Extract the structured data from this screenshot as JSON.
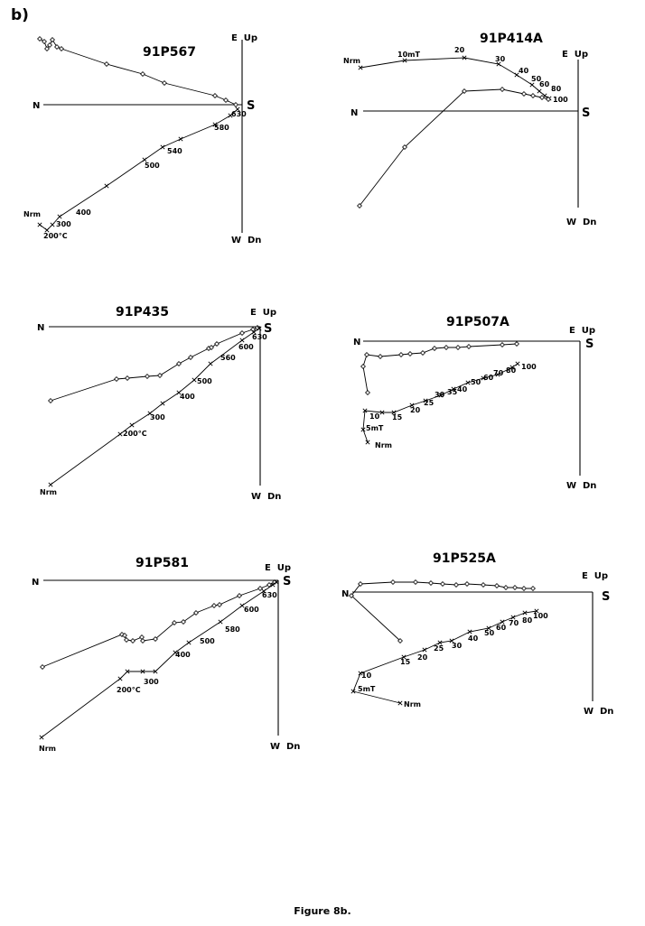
{
  "panel_label": "b)",
  "caption": "Figure 8b.",
  "chart_data": [
    {
      "type": "scatter",
      "title": "91P567",
      "axis_labels": {
        "north": "N",
        "south": "S",
        "east_up": "E  Up",
        "west_down": "W  Dn"
      },
      "series": [
        {
          "marker": "diamond",
          "points": [
            [
              44,
              43
            ],
            [
              49,
              46
            ],
            [
              52,
              54
            ],
            [
              55,
              50
            ],
            [
              58,
              44
            ],
            [
              63,
              52
            ],
            [
              68,
              54
            ],
            [
              118,
              71
            ],
            [
              158,
              82
            ],
            [
              182,
              92
            ],
            [
              238,
              106
            ],
            [
              250,
              111
            ],
            [
              261,
              116
            ]
          ]
        },
        {
          "marker": "cross",
          "points": [
            [
              44,
              249
            ],
            [
              52,
              255
            ],
            [
              58,
              249
            ],
            [
              66,
              240
            ],
            [
              118,
              206
            ],
            [
              160,
              177
            ],
            [
              180,
              163
            ],
            [
              200,
              154
            ],
            [
              238,
              138
            ],
            [
              255,
              128
            ],
            [
              263,
              121
            ]
          ]
        }
      ],
      "step_labels": [
        {
          "text": "Nrm",
          "pos": [
            26,
            240
          ]
        },
        {
          "text": "300",
          "pos": [
            62,
            251
          ]
        },
        {
          "text": "400",
          "pos": [
            84,
            238
          ]
        },
        {
          "text": "200°C",
          "pos": [
            48,
            264
          ]
        },
        {
          "text": "500",
          "pos": [
            160,
            186
          ]
        },
        {
          "text": "540",
          "pos": [
            185,
            170
          ]
        },
        {
          "text": "580",
          "pos": [
            237,
            144
          ]
        },
        {
          "text": "630",
          "pos": [
            256,
            129
          ]
        }
      ]
    },
    {
      "type": "scatter",
      "title": "91P414A",
      "axis_labels": {
        "north": "N",
        "south": "S",
        "east_up": "E  Up",
        "west_down": "W  Dn"
      },
      "series": [
        {
          "marker": "cross",
          "points": [
            [
              399,
              75
            ],
            [
              448,
              67
            ],
            [
              514,
              64
            ],
            [
              552,
              71
            ],
            [
              572,
              83
            ],
            [
              589,
              94
            ],
            [
              597,
              101
            ],
            [
              603,
              106
            ],
            [
              608,
              109
            ]
          ]
        },
        {
          "marker": "diamond",
          "points": [
            [
              398,
              228
            ],
            [
              448,
              163
            ],
            [
              514,
              101
            ],
            [
              556,
              99
            ],
            [
              580,
              104
            ],
            [
              590,
              106
            ],
            [
              600,
              108
            ],
            [
              607,
              110
            ]
          ]
        }
      ],
      "step_labels": [
        {
          "text": "Nrm",
          "pos": [
            380,
            70
          ]
        },
        {
          "text": "10mT",
          "pos": [
            440,
            63
          ]
        },
        {
          "text": "20",
          "pos": [
            503,
            58
          ]
        },
        {
          "text": "30",
          "pos": [
            548,
            68
          ]
        },
        {
          "text": "40",
          "pos": [
            574,
            81
          ]
        },
        {
          "text": "50",
          "pos": [
            588,
            90
          ]
        },
        {
          "text": "60",
          "pos": [
            597,
            96
          ]
        },
        {
          "text": "80",
          "pos": [
            610,
            101
          ]
        },
        {
          "text": "100",
          "pos": [
            612,
            113
          ]
        }
      ]
    },
    {
      "type": "scatter",
      "title": "91P435",
      "axis_labels": {
        "north": "N",
        "south": "S",
        "east_up": "E  Up",
        "west_down": "W  Dn"
      },
      "series": [
        {
          "marker": "diamond",
          "points": [
            [
              56,
              444
            ],
            [
              129,
              420
            ],
            [
              141,
              419
            ],
            [
              163,
              417
            ],
            [
              177,
              416
            ],
            [
              198,
              403
            ],
            [
              211,
              396
            ],
            [
              231,
              386
            ],
            [
              234,
              385
            ],
            [
              240,
              381
            ],
            [
              268,
              369
            ],
            [
              280,
              365
            ],
            [
              285,
              363
            ]
          ]
        },
        {
          "marker": "cross",
          "points": [
            [
              56,
              537
            ],
            [
              133,
              481
            ],
            [
              146,
              471
            ],
            [
              166,
              458
            ],
            [
              180,
              447
            ],
            [
              198,
              435
            ],
            [
              215,
              421
            ],
            [
              233,
              403
            ],
            [
              268,
              377
            ],
            [
              281,
              368
            ],
            [
              287,
              364
            ]
          ]
        }
      ],
      "step_labels": [
        {
          "text": "Nrm",
          "pos": [
            44,
            548
          ]
        },
        {
          "text": "200°C",
          "pos": [
            136,
            483
          ]
        },
        {
          "text": "300",
          "pos": [
            166,
            465
          ]
        },
        {
          "text": "400",
          "pos": [
            199,
            442
          ]
        },
        {
          "text": "500",
          "pos": [
            218,
            425
          ]
        },
        {
          "text": "560",
          "pos": [
            244,
            399
          ]
        },
        {
          "text": "600",
          "pos": [
            264,
            387
          ]
        },
        {
          "text": "630",
          "pos": [
            279,
            376
          ]
        }
      ]
    },
    {
      "type": "scatter",
      "title": "91P507A",
      "axis_labels": {
        "north": "N",
        "south": "S",
        "east_up": "E  Up",
        "west_down": "W  Dn"
      },
      "series": [
        {
          "marker": "diamond",
          "points": [
            [
              407,
              435
            ],
            [
              402,
              406
            ],
            [
              406,
              393
            ],
            [
              421,
              395
            ],
            [
              444,
              393
            ],
            [
              454,
              392
            ],
            [
              468,
              391
            ],
            [
              481,
              386
            ],
            [
              494,
              385
            ],
            [
              507,
              385
            ],
            [
              519,
              384
            ],
            [
              556,
              382
            ],
            [
              572,
              381
            ]
          ]
        },
        {
          "marker": "cross",
          "points": [
            [
              407,
              490
            ],
            [
              402,
              476
            ],
            [
              404,
              455
            ],
            [
              423,
              457
            ],
            [
              436,
              457
            ],
            [
              456,
              449
            ],
            [
              471,
              444
            ],
            [
              488,
              438
            ],
            [
              502,
              431
            ],
            [
              518,
              424
            ],
            [
              535,
              419
            ],
            [
              551,
              415
            ],
            [
              567,
              407
            ],
            [
              573,
              403
            ]
          ]
        }
      ],
      "step_labels": [
        {
          "text": "10",
          "pos": [
            409,
            464
          ]
        },
        {
          "text": "5mT",
          "pos": [
            405,
            477
          ]
        },
        {
          "text": "Nrm",
          "pos": [
            415,
            496
          ]
        },
        {
          "text": "15",
          "pos": [
            434,
            465
          ]
        },
        {
          "text": "20",
          "pos": [
            454,
            457
          ]
        },
        {
          "text": "25",
          "pos": [
            469,
            449
          ]
        },
        {
          "text": "30",
          "pos": [
            481,
            440
          ]
        },
        {
          "text": "35",
          "pos": [
            495,
            437
          ]
        },
        {
          "text": "40",
          "pos": [
            506,
            434
          ]
        },
        {
          "text": "50",
          "pos": [
            521,
            426
          ]
        },
        {
          "text": "60",
          "pos": [
            535,
            421
          ]
        },
        {
          "text": "70",
          "pos": [
            546,
            416
          ]
        },
        {
          "text": "80",
          "pos": [
            560,
            413
          ]
        },
        {
          "text": "100",
          "pos": [
            577,
            409
          ]
        }
      ]
    },
    {
      "type": "scatter",
      "title": "91P581",
      "axis_labels": {
        "north": "N",
        "south": "S",
        "east_up": "E  Up",
        "west_down": "W  Dn"
      },
      "series": [
        {
          "marker": "diamond",
          "points": [
            [
              47,
              739
            ],
            [
              135,
              703
            ],
            [
              138,
              704
            ],
            [
              140,
              709
            ],
            [
              147,
              710
            ],
            [
              157,
              706
            ],
            [
              158,
              710
            ],
            [
              172,
              708
            ],
            [
              193,
              690
            ],
            [
              203,
              689
            ],
            [
              217,
              679
            ],
            [
              237,
              671
            ],
            [
              243,
              670
            ],
            [
              265,
              660
            ],
            [
              288,
              652
            ],
            [
              298,
              648
            ],
            [
              304,
              645
            ]
          ]
        },
        {
          "marker": "cross",
          "points": [
            [
              46,
              817
            ],
            [
              133,
              752
            ],
            [
              141,
              744
            ],
            [
              158,
              744
            ],
            [
              172,
              744
            ],
            [
              194,
              723
            ],
            [
              209,
              712
            ],
            [
              244,
              689
            ],
            [
              268,
              671
            ],
            [
              292,
              655
            ],
            [
              302,
              648
            ],
            [
              306,
              645
            ]
          ]
        }
      ],
      "step_labels": [
        {
          "text": "Nrm",
          "pos": [
            43,
            832
          ]
        },
        {
          "text": "200°C",
          "pos": [
            129,
            767
          ]
        },
        {
          "text": "300",
          "pos": [
            159,
            758
          ]
        },
        {
          "text": "400",
          "pos": [
            194,
            728
          ]
        },
        {
          "text": "500",
          "pos": [
            221,
            713
          ]
        },
        {
          "text": "580",
          "pos": [
            249,
            700
          ]
        },
        {
          "text": "600",
          "pos": [
            270,
            678
          ]
        },
        {
          "text": "630",
          "pos": [
            290,
            662
          ]
        }
      ]
    },
    {
      "type": "scatter",
      "title": "91P525A",
      "axis_labels": {
        "north": "N",
        "south": "S",
        "east_up": "E  Up",
        "west_down": "W  Dn"
      },
      "series": [
        {
          "marker": "diamond",
          "points": [
            [
              443,
              710
            ],
            [
              389,
              660
            ],
            [
              399,
              647
            ],
            [
              435,
              645
            ],
            [
              460,
              645
            ],
            [
              477,
              646
            ],
            [
              490,
              647
            ],
            [
              505,
              648
            ],
            [
              517,
              647
            ],
            [
              535,
              648
            ],
            [
              550,
              649
            ],
            [
              560,
              651
            ],
            [
              570,
              651
            ],
            [
              580,
              652
            ],
            [
              590,
              652
            ]
          ]
        },
        {
          "marker": "cross",
          "points": [
            [
              443,
              779
            ],
            [
              391,
              766
            ],
            [
              399,
              746
            ],
            [
              447,
              728
            ],
            [
              470,
              720
            ],
            [
              487,
              712
            ],
            [
              500,
              710
            ],
            [
              520,
              700
            ],
            [
              541,
              696
            ],
            [
              556,
              689
            ],
            [
              568,
              684
            ],
            [
              581,
              679
            ],
            [
              594,
              677
            ]
          ]
        }
      ],
      "step_labels": [
        {
          "text": "10",
          "pos": [
            400,
            751
          ]
        },
        {
          "text": "5mT",
          "pos": [
            396,
            766
          ]
        },
        {
          "text": "Nrm",
          "pos": [
            447,
            783
          ]
        },
        {
          "text": "15",
          "pos": [
            443,
            736
          ]
        },
        {
          "text": "20",
          "pos": [
            462,
            731
          ]
        },
        {
          "text": "25",
          "pos": [
            480,
            721
          ]
        },
        {
          "text": "30",
          "pos": [
            500,
            718
          ]
        },
        {
          "text": "40",
          "pos": [
            518,
            710
          ]
        },
        {
          "text": "50",
          "pos": [
            536,
            704
          ]
        },
        {
          "text": "60",
          "pos": [
            549,
            698
          ]
        },
        {
          "text": "70",
          "pos": [
            563,
            693
          ]
        },
        {
          "text": "80",
          "pos": [
            578,
            690
          ]
        },
        {
          "text": "100",
          "pos": [
            590,
            685
          ]
        }
      ]
    }
  ]
}
